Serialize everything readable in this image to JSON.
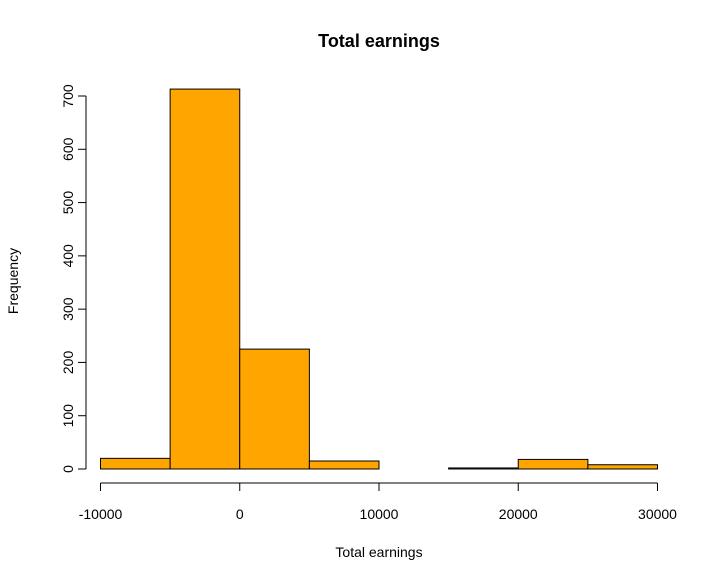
{
  "chart_data": {
    "type": "bar",
    "title": "Total earnings",
    "xlabel": "Total earnings",
    "ylabel": "Frequency",
    "bin_edges": [
      -10000,
      -5000,
      0,
      5000,
      10000,
      15000,
      20000,
      25000,
      30000
    ],
    "values": [
      20,
      713,
      225,
      15,
      0,
      2,
      18,
      8
    ],
    "xlim": [
      -10000,
      30000
    ],
    "ylim": [
      0,
      700
    ],
    "x_ticks": [
      -10000,
      0,
      10000,
      20000,
      30000
    ],
    "x_tick_labels": [
      "-10000",
      "0",
      "10000",
      "20000",
      "30000"
    ],
    "y_ticks": [
      0,
      100,
      200,
      300,
      400,
      500,
      600,
      700
    ],
    "y_tick_labels": [
      "0",
      "100",
      "200",
      "300",
      "400",
      "500",
      "600",
      "700"
    ],
    "bar_color": "#FFA500",
    "bar_border_color": "#000000",
    "grid": false,
    "legend": "none"
  }
}
